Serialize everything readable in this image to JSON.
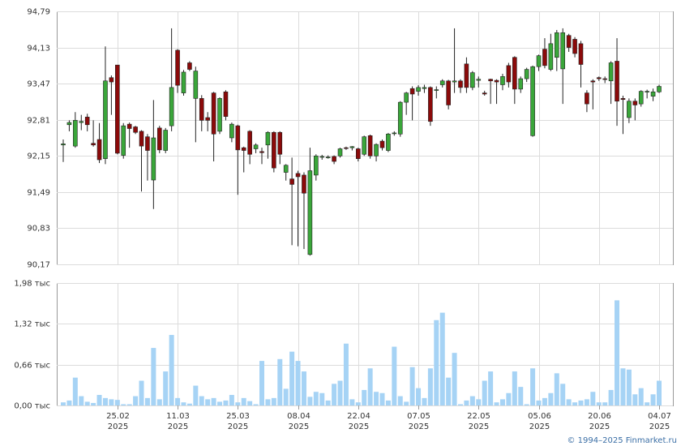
{
  "chart_data": {
    "type": "candlestick",
    "categories": [
      null,
      null,
      null,
      null,
      null,
      null,
      null,
      null,
      null,
      [
        "25.02",
        "2025"
      ],
      null,
      null,
      null,
      null,
      null,
      null,
      null,
      null,
      null,
      [
        "11.03",
        "2025"
      ],
      null,
      null,
      null,
      null,
      null,
      null,
      null,
      null,
      null,
      [
        "25.03",
        "2025"
      ],
      null,
      null,
      null,
      null,
      null,
      null,
      null,
      null,
      null,
      [
        "08.04",
        "2025"
      ],
      null,
      null,
      null,
      null,
      null,
      null,
      null,
      null,
      null,
      [
        "22.04",
        "2025"
      ],
      null,
      null,
      null,
      null,
      null,
      null,
      null,
      null,
      null,
      [
        "07.05",
        "2025"
      ],
      null,
      null,
      null,
      null,
      null,
      null,
      null,
      null,
      null,
      [
        "22.05",
        "2025"
      ],
      null,
      null,
      null,
      null,
      null,
      null,
      null,
      null,
      null,
      [
        "05.06",
        "2025"
      ],
      null,
      null,
      null,
      null,
      null,
      null,
      null,
      null,
      null,
      [
        "20.06",
        "2025"
      ],
      null,
      null,
      null,
      null,
      null,
      null,
      null,
      null,
      null,
      [
        "04.07",
        "2025"
      ]
    ],
    "ohlc": [
      [
        92.35,
        92.45,
        92.04,
        92.37
      ],
      [
        92.72,
        92.8,
        92.6,
        92.76
      ],
      [
        92.33,
        92.95,
        92.3,
        92.8
      ],
      [
        92.76,
        92.9,
        92.62,
        92.78
      ],
      [
        92.86,
        92.92,
        92.6,
        92.72
      ],
      [
        92.38,
        92.8,
        92.32,
        92.35
      ],
      [
        92.45,
        92.75,
        92.02,
        92.08
      ],
      [
        92.1,
        94.15,
        92.0,
        93.52
      ],
      [
        93.58,
        93.62,
        92.9,
        93.5
      ],
      [
        93.81,
        93.81,
        92.18,
        92.2
      ],
      [
        92.16,
        92.75,
        92.1,
        92.7
      ],
      [
        92.73,
        92.76,
        92.3,
        92.65
      ],
      [
        92.68,
        92.7,
        92.55,
        92.58
      ],
      [
        92.6,
        92.62,
        91.5,
        92.33
      ],
      [
        92.5,
        92.55,
        91.7,
        92.25
      ],
      [
        91.71,
        93.17,
        91.18,
        92.48
      ],
      [
        92.66,
        92.7,
        92.2,
        92.26
      ],
      [
        92.25,
        92.66,
        92.2,
        92.62
      ],
      [
        92.7,
        94.48,
        92.6,
        93.4
      ],
      [
        94.08,
        94.1,
        93.3,
        93.44
      ],
      [
        93.3,
        93.72,
        93.25,
        93.68
      ],
      [
        93.85,
        93.88,
        93.7,
        93.73
      ],
      [
        93.2,
        93.78,
        92.4,
        93.7
      ],
      [
        93.2,
        93.26,
        92.6,
        92.8
      ],
      [
        92.85,
        92.95,
        92.6,
        92.8
      ],
      [
        93.3,
        93.32,
        92.05,
        92.55
      ],
      [
        92.6,
        93.22,
        92.55,
        93.2
      ],
      [
        93.32,
        93.35,
        92.8,
        92.87
      ],
      [
        92.48,
        92.76,
        92.4,
        92.73
      ],
      [
        92.7,
        92.72,
        91.44,
        92.26
      ],
      [
        92.3,
        92.32,
        91.85,
        92.25
      ],
      [
        92.6,
        92.62,
        92.0,
        92.18
      ],
      [
        92.28,
        92.38,
        92.2,
        92.35
      ],
      [
        92.23,
        92.3,
        92.0,
        92.21
      ],
      [
        92.35,
        92.6,
        92.1,
        92.58
      ],
      [
        92.58,
        92.6,
        91.85,
        91.93
      ],
      [
        92.58,
        92.6,
        92.0,
        92.18
      ],
      [
        91.85,
        92.0,
        91.7,
        91.98
      ],
      [
        91.73,
        92.12,
        90.52,
        91.63
      ],
      [
        91.83,
        91.88,
        90.5,
        91.77
      ],
      [
        91.8,
        91.85,
        90.45,
        91.47
      ],
      [
        90.35,
        92.3,
        90.33,
        91.88
      ],
      [
        91.8,
        92.18,
        91.7,
        92.15
      ],
      [
        92.13,
        92.17,
        92.08,
        92.14
      ],
      [
        92.12,
        92.16,
        92.1,
        92.13
      ],
      [
        92.14,
        92.16,
        92.0,
        92.05
      ],
      [
        92.15,
        92.3,
        92.12,
        92.28
      ],
      [
        92.3,
        92.32,
        92.26,
        92.29
      ],
      [
        92.3,
        92.33,
        92.25,
        92.32
      ],
      [
        92.28,
        92.3,
        92.05,
        92.1
      ],
      [
        92.18,
        92.52,
        92.15,
        92.5
      ],
      [
        92.52,
        92.54,
        92.1,
        92.15
      ],
      [
        92.15,
        92.38,
        92.05,
        92.36
      ],
      [
        92.42,
        92.45,
        92.25,
        92.3
      ],
      [
        92.25,
        92.57,
        92.22,
        92.55
      ],
      [
        92.56,
        92.6,
        92.52,
        92.57
      ],
      [
        92.55,
        93.15,
        92.5,
        93.13
      ],
      [
        93.13,
        93.32,
        92.9,
        93.3
      ],
      [
        93.38,
        93.42,
        92.8,
        93.28
      ],
      [
        93.33,
        93.44,
        93.25,
        93.4
      ],
      [
        93.38,
        93.45,
        93.3,
        93.4
      ],
      [
        93.4,
        93.42,
        92.7,
        92.78
      ],
      [
        93.35,
        93.42,
        93.2,
        93.36
      ],
      [
        93.45,
        93.55,
        93.4,
        93.52
      ],
      [
        93.52,
        93.54,
        93.0,
        93.08
      ],
      [
        93.5,
        94.48,
        93.3,
        93.52
      ],
      [
        93.52,
        93.55,
        93.3,
        93.4
      ],
      [
        93.83,
        93.95,
        93.3,
        93.4
      ],
      [
        93.4,
        93.7,
        93.35,
        93.67
      ],
      [
        93.53,
        93.6,
        93.4,
        93.55
      ],
      [
        93.3,
        93.34,
        93.25,
        93.28
      ],
      [
        93.55,
        93.56,
        93.1,
        93.52
      ],
      [
        93.53,
        93.55,
        93.1,
        93.5
      ],
      [
        93.45,
        93.65,
        93.35,
        93.6
      ],
      [
        93.8,
        93.85,
        93.4,
        93.5
      ],
      [
        93.95,
        93.97,
        93.1,
        93.37
      ],
      [
        93.37,
        93.6,
        93.3,
        93.56
      ],
      [
        93.56,
        93.76,
        93.5,
        93.73
      ],
      [
        92.52,
        93.8,
        92.5,
        93.78
      ],
      [
        93.78,
        94.0,
        93.7,
        93.98
      ],
      [
        94.1,
        94.3,
        93.75,
        93.8
      ],
      [
        93.73,
        94.38,
        93.7,
        94.2
      ],
      [
        93.95,
        94.45,
        93.7,
        94.4
      ],
      [
        93.74,
        94.48,
        93.1,
        94.4
      ],
      [
        94.35,
        94.38,
        94.05,
        94.13
      ],
      [
        94.28,
        94.32,
        93.95,
        94.02
      ],
      [
        94.2,
        94.25,
        93.4,
        93.82
      ],
      [
        93.3,
        93.35,
        92.95,
        93.1
      ],
      [
        93.52,
        93.55,
        93.0,
        93.5
      ],
      [
        93.58,
        93.6,
        93.52,
        93.56
      ],
      [
        93.56,
        93.6,
        93.48,
        93.55
      ],
      [
        93.52,
        93.88,
        93.1,
        93.85
      ],
      [
        93.88,
        94.3,
        92.7,
        93.15
      ],
      [
        93.2,
        93.25,
        92.55,
        93.18
      ],
      [
        92.85,
        93.2,
        92.75,
        93.15
      ],
      [
        93.15,
        93.2,
        92.8,
        93.08
      ],
      [
        93.1,
        93.35,
        93.05,
        93.33
      ],
      [
        93.32,
        93.36,
        93.2,
        93.33
      ],
      [
        93.24,
        93.38,
        93.15,
        93.32
      ],
      [
        93.32,
        93.45,
        93.3,
        93.42
      ]
    ],
    "up_color": "#3aa63a",
    "down_color": "#8b0a0a",
    "ylim": [
      90.17,
      94.79
    ],
    "yticks": [
      {
        "value": 90.17,
        "label": "90,17"
      },
      {
        "value": 90.83,
        "label": "90,83"
      },
      {
        "value": 91.49,
        "label": "91,49"
      },
      {
        "value": 92.15,
        "label": "92,15"
      },
      {
        "value": 92.81,
        "label": "92,81"
      },
      {
        "value": 93.47,
        "label": "93,47"
      },
      {
        "value": 94.13,
        "label": "94,13"
      },
      {
        "value": 94.79,
        "label": "94,79"
      }
    ],
    "grid": true,
    "volume": {
      "type": "bar",
      "color": "#a6d3f5",
      "values": [
        0.05,
        0.08,
        0.45,
        0.15,
        0.06,
        0.04,
        0.17,
        0.12,
        0.1,
        0.09,
        0.02,
        0.02,
        0.15,
        0.4,
        0.12,
        0.93,
        0.1,
        0.55,
        1.14,
        0.12,
        0.05,
        0.03,
        0.32,
        0.15,
        0.1,
        0.12,
        0.06,
        0.08,
        0.17,
        0.05,
        0.12,
        0.07,
        0.02,
        0.72,
        0.1,
        0.12,
        0.75,
        0.27,
        0.87,
        0.72,
        0.55,
        0.14,
        0.22,
        0.2,
        0.08,
        0.35,
        0.4,
        1.0,
        0.1,
        0.05,
        0.25,
        0.6,
        0.22,
        0.2,
        0.08,
        0.95,
        0.15,
        0.06,
        0.62,
        0.28,
        0.12,
        0.6,
        1.38,
        1.5,
        0.45,
        0.85,
        0.02,
        0.08,
        0.15,
        0.1,
        0.4,
        0.55,
        0.05,
        0.1,
        0.2,
        0.55,
        0.3,
        0.02,
        0.6,
        0.08,
        0.12,
        0.2,
        0.52,
        0.35,
        0.1,
        0.05,
        0.08,
        0.1,
        0.22,
        0.05,
        0.05,
        0.25,
        1.7,
        0.6,
        0.58,
        0.18,
        0.28,
        0.05,
        0.18,
        0.4
      ],
      "ylim": [
        0,
        1.98
      ],
      "yticks": [
        {
          "value": 0,
          "label": "0,00 тыс"
        },
        {
          "value": 0.66,
          "label": "0,66 тыс"
        },
        {
          "value": 1.32,
          "label": "1,32 тыс"
        },
        {
          "value": 1.98,
          "label": "1,98 тыс"
        }
      ]
    }
  },
  "credit": "© 1994–2025 Finmarket.ru"
}
